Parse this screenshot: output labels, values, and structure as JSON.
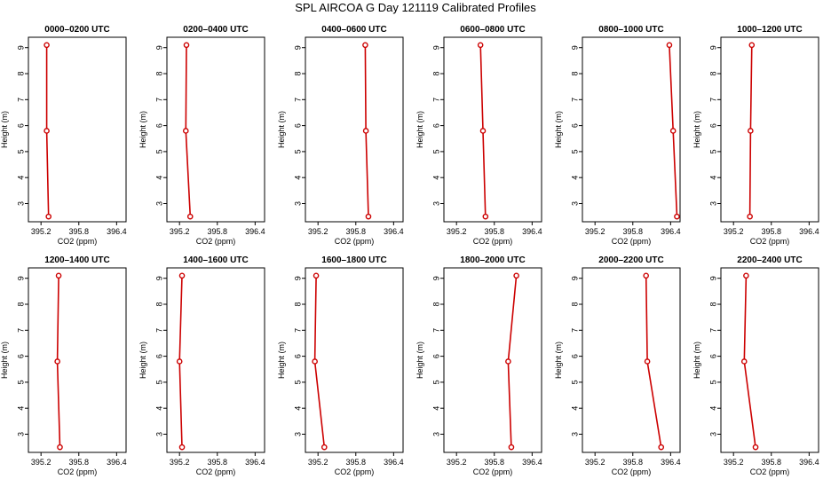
{
  "figure_title": "SPL AIRCOA G  Day 121119  Calibrated Profiles",
  "chart_data": [
    {
      "type": "line",
      "title": "0000–0200 UTC",
      "xlabel": "CO2 (ppm)",
      "ylabel": "Height (m)",
      "xlim": [
        395.0,
        396.55
      ],
      "ylim": [
        2.3,
        9.4
      ],
      "xticks": [
        "395.2",
        "395.8",
        "396.4"
      ],
      "yticks": [
        "3",
        "4",
        "5",
        "6",
        "7",
        "8",
        "9"
      ],
      "x": [
        395.32,
        395.29,
        395.29
      ],
      "y": [
        2.5,
        5.8,
        9.1
      ],
      "color": "#cc0000"
    },
    {
      "type": "line",
      "title": "0200–0400 UTC",
      "xlabel": "CO2 (ppm)",
      "ylabel": "Height (m)",
      "xlim": [
        395.0,
        396.55
      ],
      "ylim": [
        2.3,
        9.4
      ],
      "xticks": [
        "395.2",
        "395.8",
        "396.4"
      ],
      "yticks": [
        "3",
        "4",
        "5",
        "6",
        "7",
        "8",
        "9"
      ],
      "x": [
        395.37,
        395.3,
        395.31
      ],
      "y": [
        2.5,
        5.8,
        9.1
      ],
      "color": "#cc0000"
    },
    {
      "type": "line",
      "title": "0400–0600 UTC",
      "xlabel": "CO2 (ppm)",
      "ylabel": "Height (m)",
      "xlim": [
        395.0,
        396.55
      ],
      "ylim": [
        2.3,
        9.4
      ],
      "xticks": [
        "395.2",
        "395.8",
        "396.4"
      ],
      "yticks": [
        "3",
        "4",
        "5",
        "6",
        "7",
        "8",
        "9"
      ],
      "x": [
        396.0,
        395.96,
        395.95
      ],
      "y": [
        2.5,
        5.8,
        9.1
      ],
      "color": "#cc0000"
    },
    {
      "type": "line",
      "title": "0600–0800 UTC",
      "xlabel": "CO2 (ppm)",
      "ylabel": "Height (m)",
      "xlim": [
        395.0,
        396.55
      ],
      "ylim": [
        2.3,
        9.4
      ],
      "xticks": [
        "395.2",
        "395.8",
        "396.4"
      ],
      "yticks": [
        "3",
        "4",
        "5",
        "6",
        "7",
        "8",
        "9"
      ],
      "x": [
        395.66,
        395.62,
        395.58
      ],
      "y": [
        2.5,
        5.8,
        9.1
      ],
      "color": "#cc0000"
    },
    {
      "type": "line",
      "title": "0800–1000 UTC",
      "xlabel": "CO2 (ppm)",
      "ylabel": "Height (m)",
      "xlim": [
        395.0,
        396.55
      ],
      "ylim": [
        2.3,
        9.4
      ],
      "xticks": [
        "395.2",
        "395.8",
        "396.4"
      ],
      "yticks": [
        "3",
        "4",
        "5",
        "6",
        "7",
        "8",
        "9"
      ],
      "x": [
        396.5,
        396.44,
        396.38
      ],
      "y": [
        2.5,
        5.8,
        9.1
      ],
      "color": "#cc0000"
    },
    {
      "type": "line",
      "title": "1000–1200 UTC",
      "xlabel": "CO2 (ppm)",
      "ylabel": "Height (m)",
      "xlim": [
        395.0,
        396.55
      ],
      "ylim": [
        2.3,
        9.4
      ],
      "xticks": [
        "395.2",
        "395.8",
        "396.4"
      ],
      "yticks": [
        "3",
        "4",
        "5",
        "6",
        "7",
        "8",
        "9"
      ],
      "x": [
        395.46,
        395.47,
        395.49
      ],
      "y": [
        2.5,
        5.8,
        9.1
      ],
      "color": "#cc0000"
    },
    {
      "type": "line",
      "title": "1200–1400 UTC",
      "xlabel": "CO2 (ppm)",
      "ylabel": "Height (m)",
      "xlim": [
        395.0,
        396.55
      ],
      "ylim": [
        2.3,
        9.4
      ],
      "xticks": [
        "395.2",
        "395.8",
        "396.4"
      ],
      "yticks": [
        "3",
        "4",
        "5",
        "6",
        "7",
        "8",
        "9"
      ],
      "x": [
        395.5,
        395.46,
        395.48
      ],
      "y": [
        2.5,
        5.8,
        9.1
      ],
      "color": "#cc0000"
    },
    {
      "type": "line",
      "title": "1400–1600 UTC",
      "xlabel": "CO2 (ppm)",
      "ylabel": "Height (m)",
      "xlim": [
        395.0,
        396.55
      ],
      "ylim": [
        2.3,
        9.4
      ],
      "xticks": [
        "395.2",
        "395.8",
        "396.4"
      ],
      "yticks": [
        "3",
        "4",
        "5",
        "6",
        "7",
        "8",
        "9"
      ],
      "x": [
        395.24,
        395.2,
        395.24
      ],
      "y": [
        2.5,
        5.8,
        9.1
      ],
      "color": "#cc0000"
    },
    {
      "type": "line",
      "title": "1600–1800 UTC",
      "xlabel": "CO2 (ppm)",
      "ylabel": "Height (m)",
      "xlim": [
        395.0,
        396.55
      ],
      "ylim": [
        2.3,
        9.4
      ],
      "xticks": [
        "395.2",
        "395.8",
        "396.4"
      ],
      "yticks": [
        "3",
        "4",
        "5",
        "6",
        "7",
        "8",
        "9"
      ],
      "x": [
        395.3,
        395.15,
        395.17
      ],
      "y": [
        2.5,
        5.8,
        9.1
      ],
      "color": "#cc0000"
    },
    {
      "type": "line",
      "title": "1800–2000 UTC",
      "xlabel": "CO2 (ppm)",
      "ylabel": "Height (m)",
      "xlim": [
        395.0,
        396.55
      ],
      "ylim": [
        2.3,
        9.4
      ],
      "xticks": [
        "395.2",
        "395.8",
        "396.4"
      ],
      "yticks": [
        "3",
        "4",
        "5",
        "6",
        "7",
        "8",
        "9"
      ],
      "x": [
        396.07,
        396.02,
        396.15
      ],
      "y": [
        2.5,
        5.8,
        9.1
      ],
      "color": "#cc0000"
    },
    {
      "type": "line",
      "title": "2000–2200 UTC",
      "xlabel": "CO2 (ppm)",
      "ylabel": "Height (m)",
      "xlim": [
        395.0,
        396.55
      ],
      "ylim": [
        2.3,
        9.4
      ],
      "xticks": [
        "395.2",
        "395.8",
        "396.4"
      ],
      "yticks": [
        "3",
        "4",
        "5",
        "6",
        "7",
        "8",
        "9"
      ],
      "x": [
        396.25,
        396.03,
        396.01
      ],
      "y": [
        2.5,
        5.8,
        9.1
      ],
      "color": "#cc0000"
    },
    {
      "type": "line",
      "title": "2200–2400 UTC",
      "xlabel": "CO2 (ppm)",
      "ylabel": "Height (m)",
      "xlim": [
        395.0,
        396.55
      ],
      "ylim": [
        2.3,
        9.4
      ],
      "xticks": [
        "395.2",
        "395.8",
        "396.4"
      ],
      "yticks": [
        "3",
        "4",
        "5",
        "6",
        "7",
        "8",
        "9"
      ],
      "x": [
        395.55,
        395.37,
        395.4
      ],
      "y": [
        2.5,
        5.8,
        9.1
      ],
      "color": "#cc0000"
    }
  ]
}
